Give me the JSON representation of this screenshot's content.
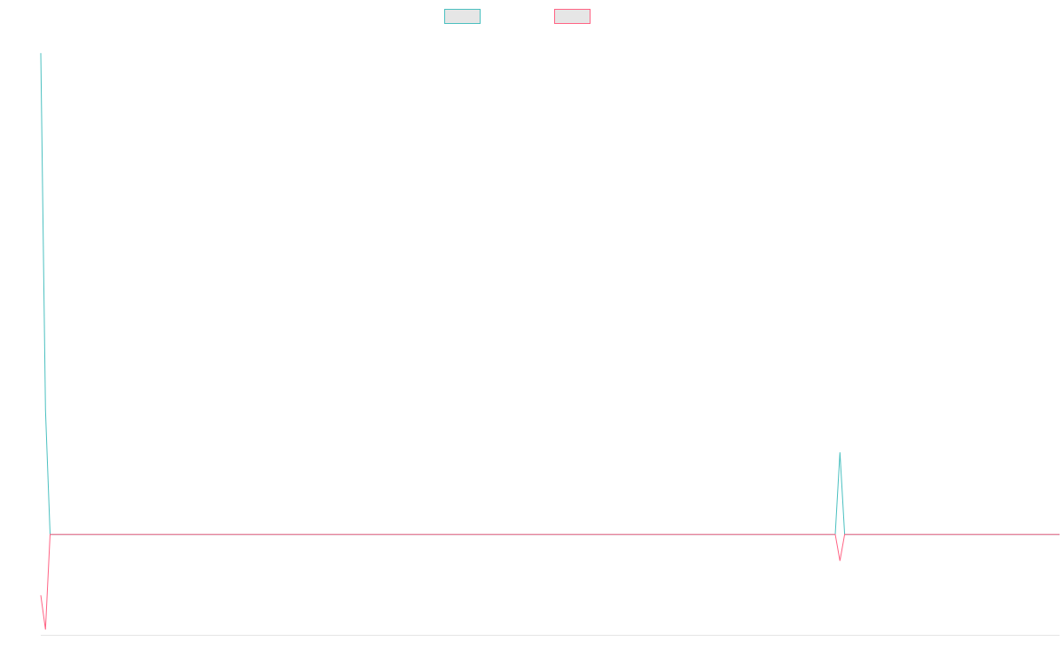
{
  "chart_data": {
    "type": "line",
    "title": "",
    "xlabel": "",
    "ylabel": "",
    "grid": false,
    "legend_position": "top-center",
    "x": [
      0,
      1,
      2,
      3,
      170,
      171,
      172,
      218
    ],
    "ylim": [
      -38,
      190
    ],
    "series": [
      {
        "color": "#4bc0c0",
        "values": [
          182,
          47,
          0,
          0,
          0,
          31,
          0,
          0
        ]
      },
      {
        "color": "#ff6384",
        "values": [
          -23,
          -36,
          0,
          0,
          0,
          -10,
          0,
          0
        ]
      }
    ]
  }
}
